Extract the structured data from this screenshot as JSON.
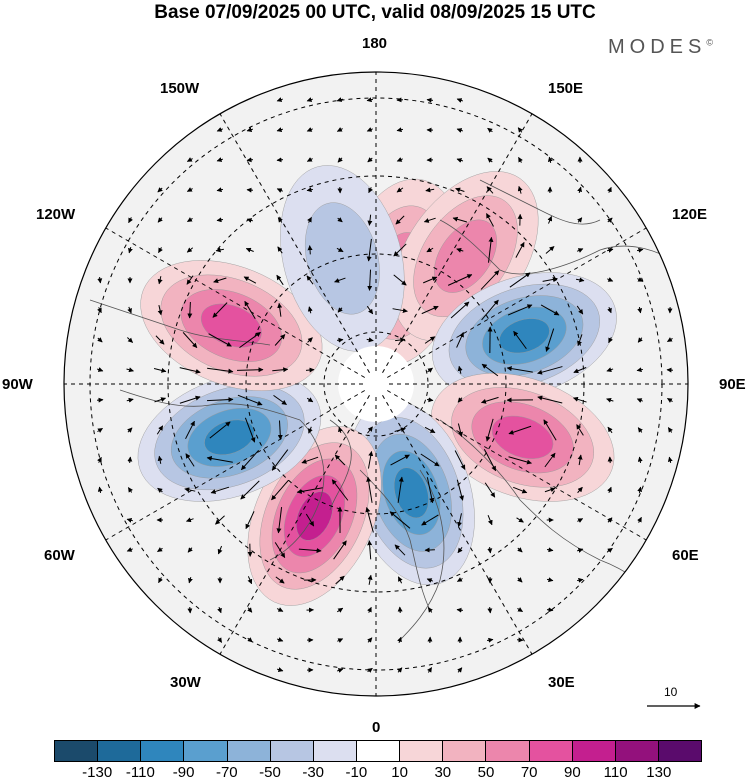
{
  "title": "Base 07/09/2025 00 UTC, valid 08/09/2025 15 UTC",
  "brand": "MODES",
  "brand_mark": "©",
  "longitude_labels": {
    "lon_180": "180",
    "lon_0": "0",
    "lon_150w": "150W",
    "lon_150e": "150E",
    "lon_120w": "120W",
    "lon_120e": "120E",
    "lon_90w": "90W",
    "lon_90e": "90E",
    "lon_60w": "60W",
    "lon_60e": "60E",
    "lon_30w": "30W",
    "lon_30e": "30E"
  },
  "reference_vector": "10",
  "colorbar": {
    "colors": [
      "#1b4a6b",
      "#1e6a9a",
      "#2f86bd",
      "#5a9fcf",
      "#8db3d9",
      "#b7c6e3",
      "#dcdff0",
      "#ffffff",
      "#f7d6d8",
      "#f2b3c0",
      "#ec86ac",
      "#e4529f",
      "#c41f8f",
      "#93117c",
      "#5a0b6c"
    ],
    "ticks": [
      "-130",
      "-110",
      "-90",
      "-70",
      "-50",
      "-30",
      "-10",
      "10",
      "30",
      "50",
      "70",
      "90",
      "110",
      "130"
    ]
  },
  "anomaly_centers": [
    {
      "lon": 167,
      "colat": 22,
      "value": 45
    },
    {
      "lon": 145,
      "colat": 30,
      "value": 55
    },
    {
      "lon": 108,
      "colat": 30,
      "value": -95
    },
    {
      "lon": 70,
      "colat": 30,
      "value": 80
    },
    {
      "lon": 18,
      "colat": 22,
      "value": -85
    },
    {
      "lon": -25,
      "colat": 28,
      "value": 100
    },
    {
      "lon": -70,
      "colat": 30,
      "value": -95
    },
    {
      "lon": -112,
      "colat": 30,
      "value": 75
    },
    {
      "lon": -165,
      "colat": 25,
      "value": -40
    }
  ]
}
